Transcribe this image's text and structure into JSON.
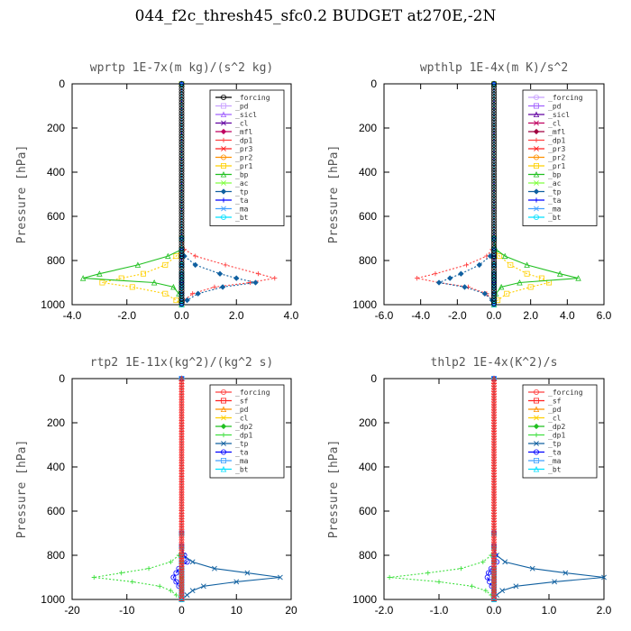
{
  "title": "044_f2c_thresh45_sfc0.2  BUDGET at270E,-2N",
  "chart_data": [
    {
      "type": "line",
      "title": "wprtp  1E-7x(m kg)/(s^2 kg)",
      "ylabel": "Pressure [hPa]",
      "xlim": [
        -4,
        4
      ],
      "ylim": [
        1000,
        0
      ],
      "xticks": [
        "-4.0",
        "-2.0",
        "0.0",
        "2.0",
        "4.0"
      ],
      "yticks": [
        "0",
        "200",
        "400",
        "600",
        "800",
        "1000"
      ],
      "legend_position": "top-right",
      "y": [
        0,
        700,
        750,
        780,
        820,
        860,
        880,
        900,
        920,
        950,
        980,
        1000
      ],
      "series": [
        {
          "name": "_forcing",
          "color": "#000000",
          "values": [
            0,
            0,
            0,
            0,
            0,
            0,
            0,
            0,
            0,
            0,
            0,
            0
          ]
        },
        {
          "name": "_pd",
          "color": "#c8a0ff",
          "values": [
            0,
            0,
            0,
            0,
            0,
            0,
            0,
            0,
            0,
            0,
            0,
            0
          ]
        },
        {
          "name": "_sicl",
          "color": "#a060ff",
          "values": [
            0,
            0,
            0,
            0,
            0,
            0,
            0,
            0,
            0,
            0,
            0,
            0
          ]
        },
        {
          "name": "_cl",
          "color": "#6000a0",
          "values": [
            0,
            0,
            0,
            0,
            0,
            0,
            0,
            0,
            0,
            0,
            0,
            0
          ]
        },
        {
          "name": "_mfl",
          "color": "#c00060",
          "values": [
            0,
            0,
            0,
            0,
            0,
            0,
            0,
            0,
            0,
            0,
            0,
            0
          ]
        },
        {
          "name": "_dp1",
          "color": "#ff4040",
          "values": [
            0,
            0,
            0.1,
            0.5,
            1.6,
            2.8,
            3.4,
            2.5,
            1.2,
            0.4,
            0.1,
            0
          ]
        },
        {
          "name": "_pr3",
          "color": "#ff2020",
          "values": [
            0,
            0,
            0,
            0,
            0,
            0,
            0,
            0,
            0,
            0,
            0,
            0
          ]
        },
        {
          "name": "_pr2",
          "color": "#ff9000",
          "values": [
            0,
            0,
            0,
            0,
            0,
            0,
            0,
            0,
            0,
            0,
            0,
            0
          ]
        },
        {
          "name": "_pr1",
          "color": "#ffd000",
          "values": [
            0,
            0,
            0,
            -0.2,
            -0.6,
            -1.4,
            -2.2,
            -2.9,
            -1.8,
            -0.6,
            -0.2,
            0
          ]
        },
        {
          "name": "_bp",
          "color": "#20c020",
          "values": [
            0,
            0,
            0,
            -0.5,
            -1.6,
            -3.0,
            -3.6,
            -1.0,
            -0.3,
            -0.1,
            0,
            0
          ]
        },
        {
          "name": "_ac",
          "color": "#80ff40",
          "values": [
            0,
            0,
            0,
            0,
            0,
            0,
            0,
            0,
            0,
            0,
            0,
            0
          ]
        },
        {
          "name": "_tp",
          "color": "#1060a0",
          "values": [
            0,
            0,
            0,
            0.1,
            0.5,
            1.4,
            2.0,
            2.7,
            1.5,
            0.6,
            0.2,
            0
          ]
        },
        {
          "name": "_ta",
          "color": "#0000ff",
          "values": [
            0,
            0,
            0,
            0,
            0,
            0,
            0,
            0,
            0,
            0,
            0,
            0
          ]
        },
        {
          "name": "_ma",
          "color": "#40a0ff",
          "values": [
            0,
            0,
            0,
            0,
            0,
            0,
            0,
            0,
            0,
            0,
            0,
            0
          ]
        },
        {
          "name": "_bt",
          "color": "#00e0ff",
          "values": [
            0,
            0,
            0,
            0,
            0,
            0,
            0,
            0,
            0,
            0,
            0,
            0
          ]
        }
      ]
    },
    {
      "type": "line",
      "title": "wpthlp  1E-4x(m K)/s^2",
      "ylabel": "Pressure [hPa]",
      "xlim": [
        -6,
        6
      ],
      "ylim": [
        1000,
        0
      ],
      "xticks": [
        "-6.0",
        "-4.0",
        "-2.0",
        "0.0",
        "2.0",
        "4.0",
        "6.0"
      ],
      "yticks": [
        "0",
        "200",
        "400",
        "600",
        "800",
        "1000"
      ],
      "legend_position": "top-right",
      "y": [
        0,
        700,
        750,
        780,
        820,
        860,
        880,
        900,
        920,
        950,
        980,
        1000
      ],
      "series": [
        {
          "name": "_forcing",
          "color": "#c8a0ff",
          "values": [
            0,
            0,
            0,
            0,
            0,
            0,
            0,
            0,
            0,
            0,
            0,
            0
          ]
        },
        {
          "name": "_pd",
          "color": "#a060ff",
          "values": [
            0,
            0,
            0,
            0,
            0,
            0,
            0,
            0,
            0,
            0,
            0,
            0
          ]
        },
        {
          "name": "_sicl",
          "color": "#6000a0",
          "values": [
            0,
            0,
            0,
            0,
            0,
            0,
            0,
            0,
            0,
            0,
            0,
            0
          ]
        },
        {
          "name": "_cl",
          "color": "#c00060",
          "values": [
            0,
            0,
            0,
            0,
            0,
            0,
            0,
            0,
            0,
            0,
            0,
            0
          ]
        },
        {
          "name": "_mfl",
          "color": "#a00040",
          "values": [
            0,
            0,
            0,
            0,
            0,
            0,
            0,
            0,
            0,
            0,
            0,
            0
          ]
        },
        {
          "name": "_dp1",
          "color": "#ff4040",
          "values": [
            0,
            0,
            -0.1,
            -0.4,
            -1.5,
            -3.2,
            -4.2,
            -3.0,
            -1.4,
            -0.4,
            -0.1,
            0
          ]
        },
        {
          "name": "_pr3",
          "color": "#ff2020",
          "values": [
            0,
            0,
            0,
            0,
            0,
            0,
            0,
            0,
            0,
            0,
            0,
            0
          ]
        },
        {
          "name": "_pr2",
          "color": "#ff9000",
          "values": [
            0,
            0,
            0,
            0,
            0,
            0,
            0,
            0,
            0,
            0,
            0,
            0
          ]
        },
        {
          "name": "_pr1",
          "color": "#ffd000",
          "values": [
            0,
            0,
            0,
            0.3,
            0.9,
            1.8,
            2.6,
            3.0,
            2.0,
            0.7,
            0.2,
            0
          ]
        },
        {
          "name": "_bp",
          "color": "#20c020",
          "values": [
            0,
            0,
            0.1,
            0.6,
            1.8,
            3.6,
            4.6,
            1.4,
            0.4,
            0.1,
            0,
            0
          ]
        },
        {
          "name": "_ac",
          "color": "#80ff40",
          "values": [
            0,
            0,
            0,
            0,
            0,
            0,
            0,
            0,
            0,
            0,
            0,
            0
          ]
        },
        {
          "name": "_tp",
          "color": "#1060a0",
          "values": [
            0,
            0,
            0,
            -0.2,
            -0.8,
            -1.8,
            -2.4,
            -3.0,
            -1.6,
            -0.5,
            -0.1,
            0
          ]
        },
        {
          "name": "_ta",
          "color": "#0000ff",
          "values": [
            0,
            0,
            0,
            0,
            0,
            0,
            0,
            0,
            0,
            0,
            0,
            0
          ]
        },
        {
          "name": "_ma",
          "color": "#40a0ff",
          "values": [
            0,
            0,
            0,
            0,
            0,
            0,
            0,
            0,
            0,
            0,
            0,
            0
          ]
        },
        {
          "name": "_bt",
          "color": "#00e0ff",
          "values": [
            0,
            0,
            0,
            0,
            0,
            0,
            0,
            0,
            0,
            0,
            0,
            0
          ]
        }
      ]
    },
    {
      "type": "line",
      "title": "rtp2  1E-11x(kg^2)/(kg^2 s)",
      "ylabel": "Pressure [hPa]",
      "xlim": [
        -20,
        20
      ],
      "ylim": [
        1000,
        0
      ],
      "xticks": [
        "-20",
        "-10",
        "0",
        "10",
        "20"
      ],
      "yticks": [
        "0",
        "200",
        "400",
        "600",
        "800",
        "1000"
      ],
      "legend_position": "top-right",
      "y": [
        0,
        700,
        760,
        800,
        830,
        860,
        880,
        900,
        920,
        940,
        960,
        980,
        1000
      ],
      "series": [
        {
          "name": "_forcing",
          "color": "#ff4040",
          "values": [
            0,
            0,
            0,
            0,
            0,
            0,
            0,
            0,
            0,
            0,
            0,
            0,
            0
          ]
        },
        {
          "name": "_sf",
          "color": "#ff2020",
          "values": [
            0,
            0,
            0,
            0,
            0,
            0,
            0,
            0,
            0,
            0,
            0,
            0,
            0
          ]
        },
        {
          "name": "_pd",
          "color": "#ff9000",
          "values": [
            0,
            0,
            0,
            0,
            0,
            0,
            0,
            0,
            0,
            0,
            0,
            0,
            0
          ]
        },
        {
          "name": "_cl",
          "color": "#ffd000",
          "values": [
            0,
            0,
            0,
            0,
            0,
            0,
            0,
            0,
            0,
            0,
            0,
            0,
            0
          ]
        },
        {
          "name": "_dp2",
          "color": "#20c020",
          "values": [
            0,
            0,
            0,
            0,
            0,
            0,
            0,
            0,
            0,
            0,
            0,
            0,
            0
          ]
        },
        {
          "name": "_dp1",
          "color": "#40e040",
          "values": [
            0,
            0,
            0,
            -0.5,
            -2,
            -6,
            -11,
            -16,
            -9,
            -4,
            -2,
            -1,
            0
          ]
        },
        {
          "name": "_tp",
          "color": "#1060a0",
          "values": [
            0,
            0,
            0,
            0.3,
            2,
            6,
            12,
            18,
            10,
            4,
            2,
            1,
            0
          ]
        },
        {
          "name": "_ta",
          "color": "#0000ff",
          "values": [
            0,
            0,
            0,
            0.5,
            1,
            -0.5,
            -1,
            -1.5,
            -1,
            -0.5,
            0,
            0,
            0
          ]
        },
        {
          "name": "_ma",
          "color": "#40a0ff",
          "values": [
            0,
            0,
            0,
            0,
            0,
            0,
            0,
            0,
            0,
            0,
            0,
            0,
            0
          ]
        },
        {
          "name": "_bt",
          "color": "#00e0ff",
          "values": [
            0,
            0,
            0,
            0,
            0,
            0,
            0,
            0,
            0,
            0,
            0,
            0,
            0
          ]
        }
      ]
    },
    {
      "type": "line",
      "title": "thlp2  1E-4x(K^2)/s",
      "ylabel": "Pressure [hPa]",
      "xlim": [
        -2,
        2
      ],
      "ylim": [
        1000,
        0
      ],
      "xticks": [
        "-2.0",
        "-1.0",
        "0.0",
        "1.0",
        "2.0"
      ],
      "yticks": [
        "0",
        "200",
        "400",
        "600",
        "800",
        "1000"
      ],
      "legend_position": "top-right",
      "y": [
        0,
        700,
        760,
        800,
        830,
        860,
        880,
        900,
        920,
        940,
        960,
        980,
        1000
      ],
      "series": [
        {
          "name": "_forcing",
          "color": "#ff4040",
          "values": [
            0,
            0,
            0,
            0,
            0,
            0,
            0,
            0,
            0,
            0,
            0,
            0,
            0
          ]
        },
        {
          "name": "_sf",
          "color": "#ff2020",
          "values": [
            0,
            0,
            0,
            0,
            0,
            0,
            0,
            0,
            0,
            0,
            0,
            0,
            0
          ]
        },
        {
          "name": "_pd",
          "color": "#ff9000",
          "values": [
            0,
            0,
            0,
            0,
            0,
            0,
            0,
            0,
            0,
            0,
            0,
            0,
            0
          ]
        },
        {
          "name": "_cl",
          "color": "#ffd000",
          "values": [
            0,
            0,
            0,
            0,
            0,
            0,
            0,
            0,
            0,
            0,
            0,
            0,
            0
          ]
        },
        {
          "name": "_dp2",
          "color": "#20c020",
          "values": [
            0,
            0,
            0,
            0,
            0,
            0,
            0,
            0,
            0,
            0,
            0,
            0,
            0
          ]
        },
        {
          "name": "_dp1",
          "color": "#40e040",
          "values": [
            0,
            0,
            0,
            -0.05,
            -0.2,
            -0.6,
            -1.2,
            -1.9,
            -1.0,
            -0.4,
            -0.15,
            -0.05,
            0
          ]
        },
        {
          "name": "_tp",
          "color": "#1060a0",
          "values": [
            0,
            0,
            0,
            0.05,
            0.2,
            0.7,
            1.3,
            2.0,
            1.1,
            0.4,
            0.15,
            0.05,
            0
          ]
        },
        {
          "name": "_ta",
          "color": "#0000ff",
          "values": [
            0,
            0,
            0,
            0.02,
            0.05,
            -0.05,
            -0.1,
            -0.12,
            -0.08,
            -0.04,
            0,
            0,
            0
          ]
        },
        {
          "name": "_ma",
          "color": "#40a0ff",
          "values": [
            0,
            0,
            0,
            0,
            0,
            0,
            0,
            0,
            0,
            0,
            0,
            0,
            0
          ]
        },
        {
          "name": "_bt",
          "color": "#00e0ff",
          "values": [
            0,
            0,
            0,
            0,
            0,
            0,
            0,
            0,
            0,
            0,
            0,
            0,
            0
          ]
        }
      ]
    }
  ]
}
